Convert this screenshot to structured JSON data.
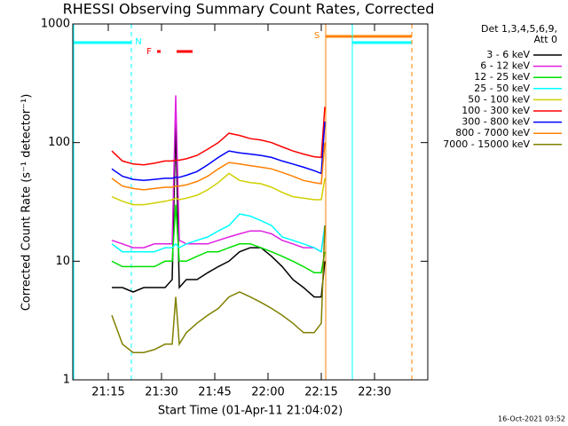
{
  "chart_data": {
    "type": "line",
    "title": "RHESSI Observing Summary Count Rates, Corrected",
    "x_label": "Start Time (01-Apr-11 21:04:02)",
    "y_label": "Corrected Count Rate (s⁻¹ detector⁻¹)",
    "legend_title": [
      "Det 1,3,4,5,6,9,",
      "Att 0"
    ],
    "footer": "16-Oct-2021 03:52",
    "annotations": [
      "N",
      "F",
      "S"
    ],
    "log_y": true,
    "xlim": [
      "21:05",
      "22:45"
    ],
    "xticks": [
      "21:15",
      "21:30",
      "21:45",
      "22:00",
      "22:15",
      "22:30"
    ],
    "ylim": [
      1,
      1000
    ],
    "yticks": [
      1,
      10,
      100,
      1000
    ],
    "x": [
      "21:16",
      "21:19",
      "21:22",
      "21:25",
      "21:28",
      "21:31",
      "21:33",
      "21:34",
      "21:35",
      "21:37",
      "21:40",
      "21:43",
      "21:46",
      "21:49",
      "21:52",
      "21:55",
      "21:58",
      "22:01",
      "22:04",
      "22:07",
      "22:10",
      "22:13",
      "22:15",
      "22:16"
    ],
    "series": [
      {
        "name": "3 - 6 keV",
        "color": "#000000",
        "values": [
          6,
          6,
          5.5,
          6,
          6,
          6,
          7,
          150,
          6,
          7,
          7,
          8,
          9,
          10,
          12,
          13,
          13,
          11,
          9,
          7,
          6,
          5,
          5,
          10
        ]
      },
      {
        "name": "6 - 12 keV",
        "color": "#e020e0",
        "values": [
          15,
          14,
          13,
          13,
          14,
          14,
          14,
          250,
          15,
          14,
          14,
          14,
          15,
          16,
          17,
          18,
          18,
          17,
          15,
          14,
          13,
          13,
          12,
          20
        ]
      },
      {
        "name": "12 - 25 keV",
        "color": "#00e000",
        "values": [
          10,
          9,
          9,
          9,
          9,
          10,
          10,
          30,
          10,
          10,
          11,
          12,
          12,
          13,
          14,
          14,
          13,
          12,
          11,
          10,
          9,
          8,
          8,
          12
        ]
      },
      {
        "name": "25 - 50 keV",
        "color": "#00ffff",
        "values": [
          14,
          12,
          12,
          12,
          12,
          13,
          13,
          14,
          13,
          14,
          15,
          16,
          18,
          20,
          25,
          24,
          22,
          20,
          16,
          15,
          14,
          13,
          12,
          20
        ]
      },
      {
        "name": "50 - 100 keV",
        "color": "#d0d000",
        "values": [
          35,
          32,
          30,
          30,
          31,
          32,
          33,
          34,
          33,
          34,
          36,
          40,
          46,
          55,
          48,
          46,
          45,
          42,
          38,
          35,
          34,
          33,
          33,
          50
        ]
      },
      {
        "name": "100 - 300 keV",
        "color": "#ff0000",
        "values": [
          85,
          70,
          66,
          65,
          67,
          70,
          70,
          71,
          71,
          73,
          78,
          88,
          100,
          120,
          115,
          108,
          105,
          100,
          92,
          85,
          80,
          76,
          75,
          200
        ]
      },
      {
        "name": "300 - 800 keV",
        "color": "#0000ff",
        "values": [
          60,
          52,
          49,
          48,
          49,
          50,
          50,
          51,
          51,
          53,
          57,
          65,
          75,
          85,
          82,
          80,
          78,
          75,
          70,
          66,
          62,
          58,
          55,
          150
        ]
      },
      {
        "name": "800 - 7000 keV",
        "color": "#ff8000",
        "values": [
          50,
          43,
          41,
          40,
          41,
          42,
          42,
          43,
          43,
          44,
          47,
          52,
          60,
          68,
          66,
          64,
          62,
          60,
          56,
          52,
          48,
          46,
          45,
          100
        ]
      },
      {
        "name": "7000 - 15000 keV",
        "color": "#808000",
        "values": [
          3.5,
          2,
          1.7,
          1.7,
          1.8,
          2,
          2,
          5,
          2,
          2.5,
          3,
          3.5,
          4,
          5,
          5.5,
          5,
          4.5,
          4,
          3.5,
          3,
          2.5,
          2.5,
          3,
          20
        ]
      }
    ]
  }
}
